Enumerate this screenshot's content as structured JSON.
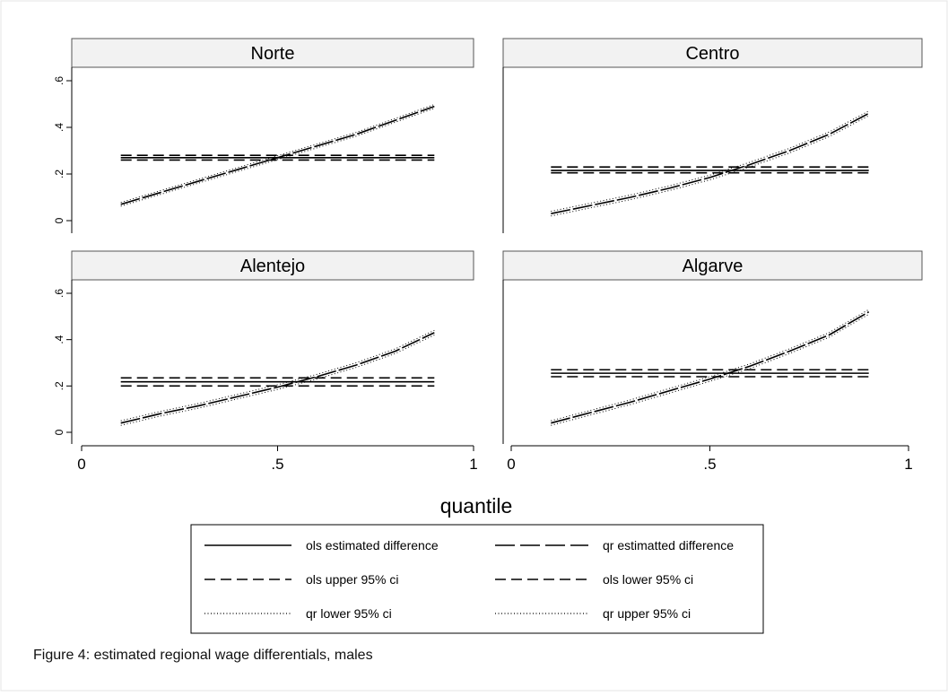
{
  "caption": "Figure 4: estimated regional wage differentials, males",
  "colors": {
    "background": "#ffffff",
    "panel_header": "#f2f2f2",
    "lines": "#000000",
    "border": "#cccccc"
  },
  "chart_data": {
    "type": "line",
    "layout": "small-multiples 2x2",
    "xlabel": "quantile",
    "xlim": [
      0,
      1
    ],
    "ylim": [
      0,
      0.6
    ],
    "x_ticks": [
      "0",
      ".5",
      "1"
    ],
    "y_ticks": [
      "0",
      ".2",
      ".4",
      ".6"
    ],
    "grid": false,
    "legend_position": "bottom",
    "legend": [
      "ols estimated difference",
      "qr estimatted difference",
      "ols upper 95% ci",
      "ols lower 95% ci",
      "qr lower 95% ci",
      "qr upper 95% ci"
    ],
    "panels": [
      {
        "title": "Norte",
        "ols": {
          "estimate": 0.27,
          "upper": 0.28,
          "lower": 0.26,
          "x_range": [
            0.1,
            0.9
          ]
        },
        "qr": {
          "x": [
            0.1,
            0.2,
            0.3,
            0.4,
            0.5,
            0.6,
            0.7,
            0.8,
            0.9
          ],
          "y": [
            0.07,
            0.12,
            0.17,
            0.22,
            0.27,
            0.32,
            0.37,
            0.43,
            0.49
          ],
          "ci_halfwidth": 0.008
        }
      },
      {
        "title": "Centro",
        "ols": {
          "estimate": 0.215,
          "upper": 0.23,
          "lower": 0.205,
          "x_range": [
            0.1,
            0.9
          ]
        },
        "qr": {
          "x": [
            0.1,
            0.2,
            0.3,
            0.4,
            0.5,
            0.6,
            0.7,
            0.8,
            0.9
          ],
          "y": [
            0.03,
            0.065,
            0.1,
            0.14,
            0.185,
            0.24,
            0.3,
            0.37,
            0.46
          ],
          "ci_halfwidth": 0.01
        }
      },
      {
        "title": "Alentejo",
        "ols": {
          "estimate": 0.218,
          "upper": 0.235,
          "lower": 0.2,
          "x_range": [
            0.1,
            0.9
          ]
        },
        "qr": {
          "x": [
            0.1,
            0.2,
            0.3,
            0.4,
            0.5,
            0.6,
            0.7,
            0.8,
            0.9
          ],
          "y": [
            0.04,
            0.08,
            0.115,
            0.155,
            0.195,
            0.24,
            0.29,
            0.35,
            0.43
          ],
          "ci_halfwidth": 0.01
        }
      },
      {
        "title": "Algarve",
        "ols": {
          "estimate": 0.255,
          "upper": 0.27,
          "lower": 0.24,
          "x_range": [
            0.1,
            0.9
          ]
        },
        "qr": {
          "x": [
            0.1,
            0.2,
            0.3,
            0.4,
            0.5,
            0.6,
            0.7,
            0.8,
            0.9
          ],
          "y": [
            0.04,
            0.085,
            0.13,
            0.18,
            0.23,
            0.285,
            0.35,
            0.42,
            0.52
          ],
          "ci_halfwidth": 0.01
        }
      }
    ]
  }
}
